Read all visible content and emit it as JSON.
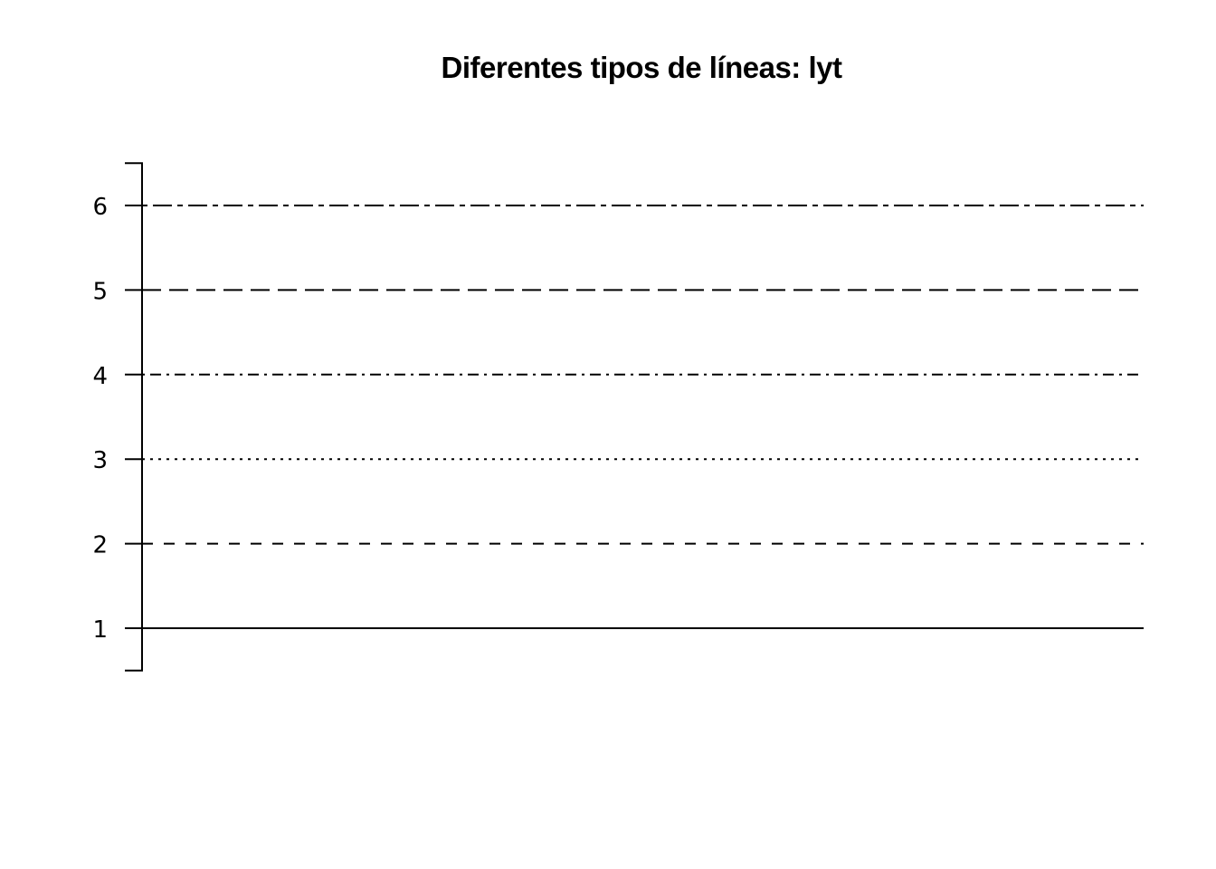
{
  "chart_data": {
    "type": "line",
    "title": "Diferentes tipos de líneas: lyt",
    "xlabel": "",
    "ylabel": "",
    "ylim": [
      0.5,
      6.5
    ],
    "yticks": [
      1,
      2,
      3,
      4,
      5,
      6
    ],
    "grid": false,
    "series": [
      {
        "y": 1,
        "linetype": "solid"
      },
      {
        "y": 2,
        "linetype": "dashed"
      },
      {
        "y": 3,
        "linetype": "dotted"
      },
      {
        "y": 4,
        "linetype": "dotdash"
      },
      {
        "y": 5,
        "linetype": "longdash"
      },
      {
        "y": 6,
        "linetype": "twodash"
      }
    ],
    "colors": {
      "line": "#000000",
      "axis": "#000000",
      "background": "#ffffff"
    }
  }
}
